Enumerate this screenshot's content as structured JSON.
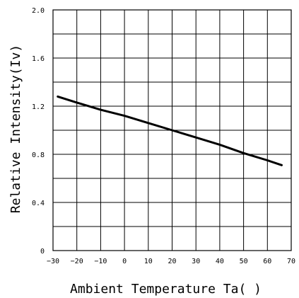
{
  "chart_data": {
    "type": "line",
    "title": "",
    "xlabel": "Ambient Temperature Ta( )",
    "ylabel": "Relative Intensity(Iv)",
    "xlim": [
      -30,
      70
    ],
    "ylim": [
      0,
      2.0
    ],
    "grid": true,
    "x_ticks": [
      -30,
      -20,
      -10,
      0,
      10,
      20,
      30,
      40,
      50,
      60,
      70
    ],
    "x_tick_labels": [
      "−30",
      "−20",
      "−10",
      "0",
      "10",
      "20",
      "30",
      "40",
      "50",
      "60",
      "70"
    ],
    "y_ticks": [
      0,
      0.4,
      0.8,
      1.2,
      1.6,
      2.0
    ],
    "y_tick_labels": [
      "0",
      "0.4",
      "0.8",
      "1.2",
      "1.6",
      "2.0"
    ],
    "y_minor_step": 0.2,
    "series": [
      {
        "x": [
          -28,
          -20,
          -10,
          0,
          10,
          20,
          30,
          40,
          50,
          60,
          66
        ],
        "y": [
          1.28,
          1.23,
          1.17,
          1.12,
          1.06,
          1.0,
          0.94,
          0.88,
          0.81,
          0.75,
          0.71
        ],
        "color": "#000000"
      }
    ]
  }
}
